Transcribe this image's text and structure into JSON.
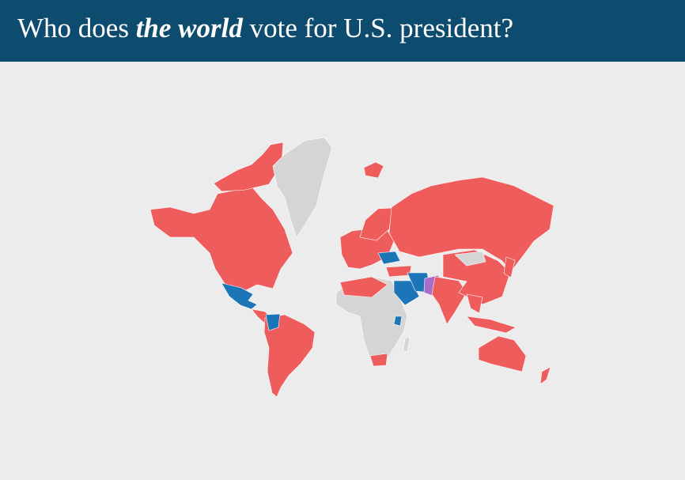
{
  "header": {
    "title_before": "Who does ",
    "title_emphasis": "the world",
    "title_after": " vote for U.S. president?"
  }
}
